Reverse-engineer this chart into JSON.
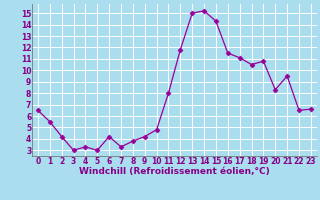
{
  "x": [
    0,
    1,
    2,
    3,
    4,
    5,
    6,
    7,
    8,
    9,
    10,
    11,
    12,
    13,
    14,
    15,
    16,
    17,
    18,
    19,
    20,
    21,
    22,
    23
  ],
  "y": [
    6.5,
    5.5,
    4.2,
    3.0,
    3.3,
    3.0,
    4.2,
    3.3,
    3.8,
    4.2,
    4.8,
    8.0,
    11.8,
    15.0,
    15.2,
    14.3,
    11.5,
    11.1,
    10.5,
    10.8,
    8.3,
    9.5,
    6.5,
    6.6
  ],
  "line_color": "#990099",
  "marker": "D",
  "marker_size": 2.5,
  "bg_color": "#aaddee",
  "grid_color": "#cceeee",
  "xlabel": "Windchill (Refroidissement éolien,°C)",
  "ylim": [
    2.5,
    15.8
  ],
  "yticks": [
    3,
    4,
    5,
    6,
    7,
    8,
    9,
    10,
    11,
    12,
    13,
    14,
    15
  ],
  "xlim": [
    -0.5,
    23.5
  ],
  "xticks": [
    0,
    1,
    2,
    3,
    4,
    5,
    6,
    7,
    8,
    9,
    10,
    11,
    12,
    13,
    14,
    15,
    16,
    17,
    18,
    19,
    20,
    21,
    22,
    23
  ],
  "axis_fontsize": 6.5,
  "tick_fontsize": 5.5
}
